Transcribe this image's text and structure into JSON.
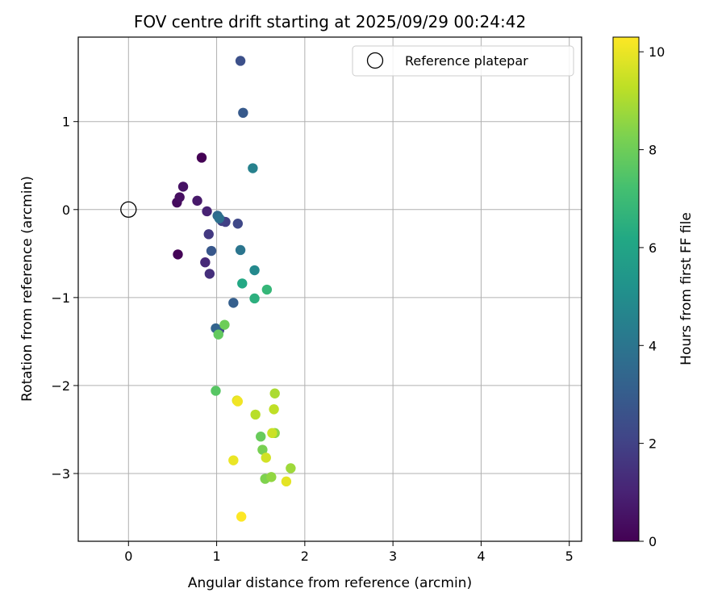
{
  "chart_data": {
    "type": "scatter",
    "title": "FOV centre drift starting at 2025/09/29 00:24:42",
    "xlabel": "Angular distance from reference (arcmin)",
    "ylabel": "Rotation from reference (arcmin)",
    "xlim": [
      -0.57,
      5.14
    ],
    "ylim": [
      -3.77,
      1.96
    ],
    "xticks": [
      0,
      1,
      2,
      3,
      4,
      5
    ],
    "yticks": [
      1,
      0,
      -1,
      -2,
      -3
    ],
    "grid": true,
    "legend": {
      "location": "top-right",
      "label": "Reference platepar"
    },
    "reference_point": {
      "x": 0,
      "y": 0
    },
    "colorbar": {
      "label": "Hours from first FF file",
      "colormap": "viridis",
      "min": 0,
      "max": 10.3,
      "ticks": [
        0,
        2,
        4,
        6,
        8,
        10
      ]
    },
    "points": [
      {
        "x": 0.83,
        "y": 0.59,
        "h": 0.0
      },
      {
        "x": 0.56,
        "y": -0.51,
        "h": 0.1
      },
      {
        "x": 0.55,
        "y": 0.08,
        "h": 0.3
      },
      {
        "x": 0.58,
        "y": 0.14,
        "h": 0.4
      },
      {
        "x": 0.62,
        "y": 0.26,
        "h": 0.5
      },
      {
        "x": 0.78,
        "y": 0.1,
        "h": 0.7
      },
      {
        "x": 0.89,
        "y": -0.02,
        "h": 1.0
      },
      {
        "x": 0.87,
        "y": -0.6,
        "h": 1.2
      },
      {
        "x": 0.92,
        "y": -0.73,
        "h": 1.4
      },
      {
        "x": 0.91,
        "y": -0.28,
        "h": 1.7
      },
      {
        "x": 1.1,
        "y": -0.14,
        "h": 1.9
      },
      {
        "x": 1.06,
        "y": -0.13,
        "h": 2.0
      },
      {
        "x": 1.24,
        "y": -0.16,
        "h": 2.2
      },
      {
        "x": 1.03,
        "y": -1.37,
        "h": 2.3
      },
      {
        "x": 1.27,
        "y": 1.69,
        "h": 2.5
      },
      {
        "x": 0.94,
        "y": -0.47,
        "h": 2.8
      },
      {
        "x": 1.3,
        "y": 1.1,
        "h": 2.9
      },
      {
        "x": 1.19,
        "y": -1.06,
        "h": 3.1
      },
      {
        "x": 0.99,
        "y": -1.35,
        "h": 3.3
      },
      {
        "x": 1.01,
        "y": -0.07,
        "h": 3.5
      },
      {
        "x": 1.03,
        "y": -0.1,
        "h": 3.8
      },
      {
        "x": 1.27,
        "y": -0.46,
        "h": 4.0
      },
      {
        "x": 1.41,
        "y": 0.47,
        "h": 4.5
      },
      {
        "x": 1.43,
        "y": -0.69,
        "h": 4.8
      },
      {
        "x": 1.29,
        "y": -0.84,
        "h": 6.2
      },
      {
        "x": 1.43,
        "y": -1.01,
        "h": 6.5
      },
      {
        "x": 1.57,
        "y": -0.91,
        "h": 6.8
      },
      {
        "x": 0.99,
        "y": -2.06,
        "h": 7.6
      },
      {
        "x": 1.02,
        "y": -1.42,
        "h": 7.8
      },
      {
        "x": 1.09,
        "y": -1.31,
        "h": 8.0
      },
      {
        "x": 1.5,
        "y": -2.58,
        "h": 7.9
      },
      {
        "x": 1.52,
        "y": -2.73,
        "h": 8.2
      },
      {
        "x": 1.55,
        "y": -3.06,
        "h": 8.3
      },
      {
        "x": 1.62,
        "y": -3.04,
        "h": 8.6
      },
      {
        "x": 1.66,
        "y": -2.54,
        "h": 8.5
      },
      {
        "x": 1.84,
        "y": -2.94,
        "h": 8.8
      },
      {
        "x": 1.66,
        "y": -2.09,
        "h": 9.0
      },
      {
        "x": 1.44,
        "y": -2.33,
        "h": 9.2
      },
      {
        "x": 1.65,
        "y": -2.27,
        "h": 9.3
      },
      {
        "x": 1.63,
        "y": -2.54,
        "h": 9.5
      },
      {
        "x": 1.56,
        "y": -2.82,
        "h": 9.6
      },
      {
        "x": 1.23,
        "y": -2.17,
        "h": 9.8
      },
      {
        "x": 1.79,
        "y": -3.09,
        "h": 9.9
      },
      {
        "x": 1.19,
        "y": -2.85,
        "h": 10.0
      },
      {
        "x": 1.24,
        "y": -2.18,
        "h": 10.1
      },
      {
        "x": 1.28,
        "y": -3.49,
        "h": 10.3
      }
    ]
  }
}
